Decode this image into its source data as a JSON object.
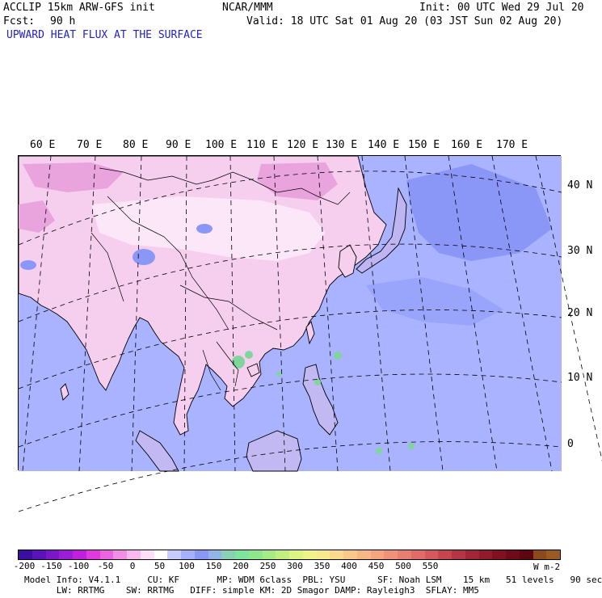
{
  "header": {
    "model": "ACCLIP 15km ARW-GFS init",
    "org": "NCAR/MMM",
    "init": "Init: 00 UTC Wed 29 Jul 20",
    "fcst_label": "Fcst:",
    "fcst_value": "90 h",
    "valid": "Valid: 18 UTC Sat 01 Aug 20 (03 JST Sun 02 Aug 20)",
    "field_title": "UPWARD HEAT FLUX AT THE SURFACE"
  },
  "map": {
    "lon_labels": [
      "60 E",
      "70 E",
      "80 E",
      "90 E",
      "100 E",
      "110 E",
      "120 E",
      "130 E",
      "140 E",
      "150 E",
      "160 E",
      "170 E"
    ],
    "lat_labels": [
      "40 N",
      "30 N",
      "20 N",
      "10 N",
      "0"
    ],
    "colors": {
      "ocean": "#a9b3ff",
      "land_pink": "#f6cfee",
      "land_light": "#fbe7f7",
      "land_magenta": "#e9a4de",
      "flux_green": "#7fd59a"
    }
  },
  "colorbar": {
    "labels": [
      "-200",
      "-150",
      "-100",
      "-50",
      "0",
      "50",
      "100",
      "150",
      "200",
      "250",
      "300",
      "350",
      "400",
      "450",
      "500",
      "550"
    ],
    "units": "W m-2",
    "colors": [
      "#3b0fa0",
      "#5a13b8",
      "#7a18c9",
      "#9b1dd6",
      "#c01fdc",
      "#e03adc",
      "#ec63e0",
      "#f18fe6",
      "#f7b9ee",
      "#fbe0f7",
      "#ffffff",
      "#c6ccff",
      "#a5b0ff",
      "#8b97f6",
      "#8fb6e6",
      "#88d1b4",
      "#7fe49c",
      "#8ee88a",
      "#a6ec82",
      "#c2f080",
      "#ddf484",
      "#eff38a",
      "#f7e98e",
      "#f9d98d",
      "#f9c88a",
      "#f7b785",
      "#f4a57f",
      "#ef9279",
      "#e97f72",
      "#e06b68",
      "#d4585c",
      "#c5464f",
      "#b43543",
      "#a32638",
      "#921a2d",
      "#801022",
      "#6e0a19",
      "#5c0612",
      "#8a4a1a",
      "#9a5a22"
    ]
  },
  "footer": {
    "line1": "Model Info: V4.1.1     CU: KF       MP: WDM 6class  PBL: YSU      SF: Noah LSM    15 km   51 levels   90 sec",
    "line2": "      LW: RRTMG    SW: RRTMG   DIFF: simple KM: 2D Smagor DAMP: Rayleigh3  SFLAY: MM5"
  }
}
